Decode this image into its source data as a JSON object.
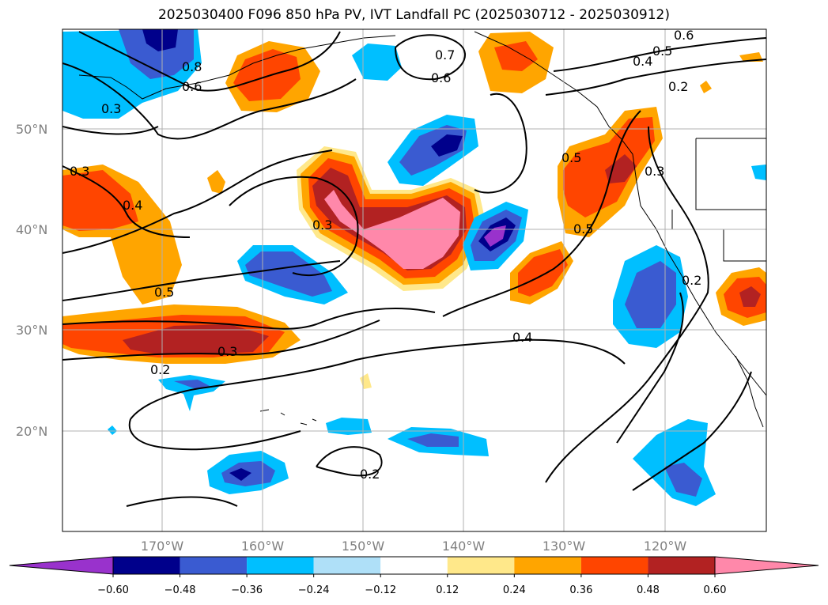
{
  "title": "2025030400 F096 850 hPa PV, IVT Landfall PC (2025030712 - 2025030912)",
  "map": {
    "lat_labels": [
      "50°N",
      "40°N",
      "30°N",
      "20°N"
    ],
    "lon_labels": [
      "170°W",
      "160°W",
      "150°W",
      "140°W",
      "130°W",
      "120°W"
    ],
    "lon_range": [
      -180,
      -110
    ],
    "lat_range": [
      10,
      60
    ],
    "contour_labels": [
      "0.8",
      "0.6",
      "0.3",
      "0.3",
      "0.4",
      "0.5",
      "0.3",
      "0.2",
      "0.3",
      "0.6",
      "0.7",
      "0.5",
      "0.4",
      "0.6",
      "0.2",
      "0.5",
      "0.3",
      "0.5",
      "0.2",
      "0.4",
      "0.2"
    ]
  },
  "colorbar": {
    "ticks": [
      "−0.60",
      "−0.48",
      "−0.36",
      "−0.24",
      "−0.12",
      "0.12",
      "0.24",
      "0.36",
      "0.48",
      "0.60"
    ],
    "colors": [
      "#9932cc",
      "#00008b",
      "#3a5bd1",
      "#00bfff",
      "#afe0f8",
      "#ffffff",
      "#ffe88a",
      "#ffa500",
      "#ff4500",
      "#b22222",
      "#ff88aa"
    ]
  }
}
